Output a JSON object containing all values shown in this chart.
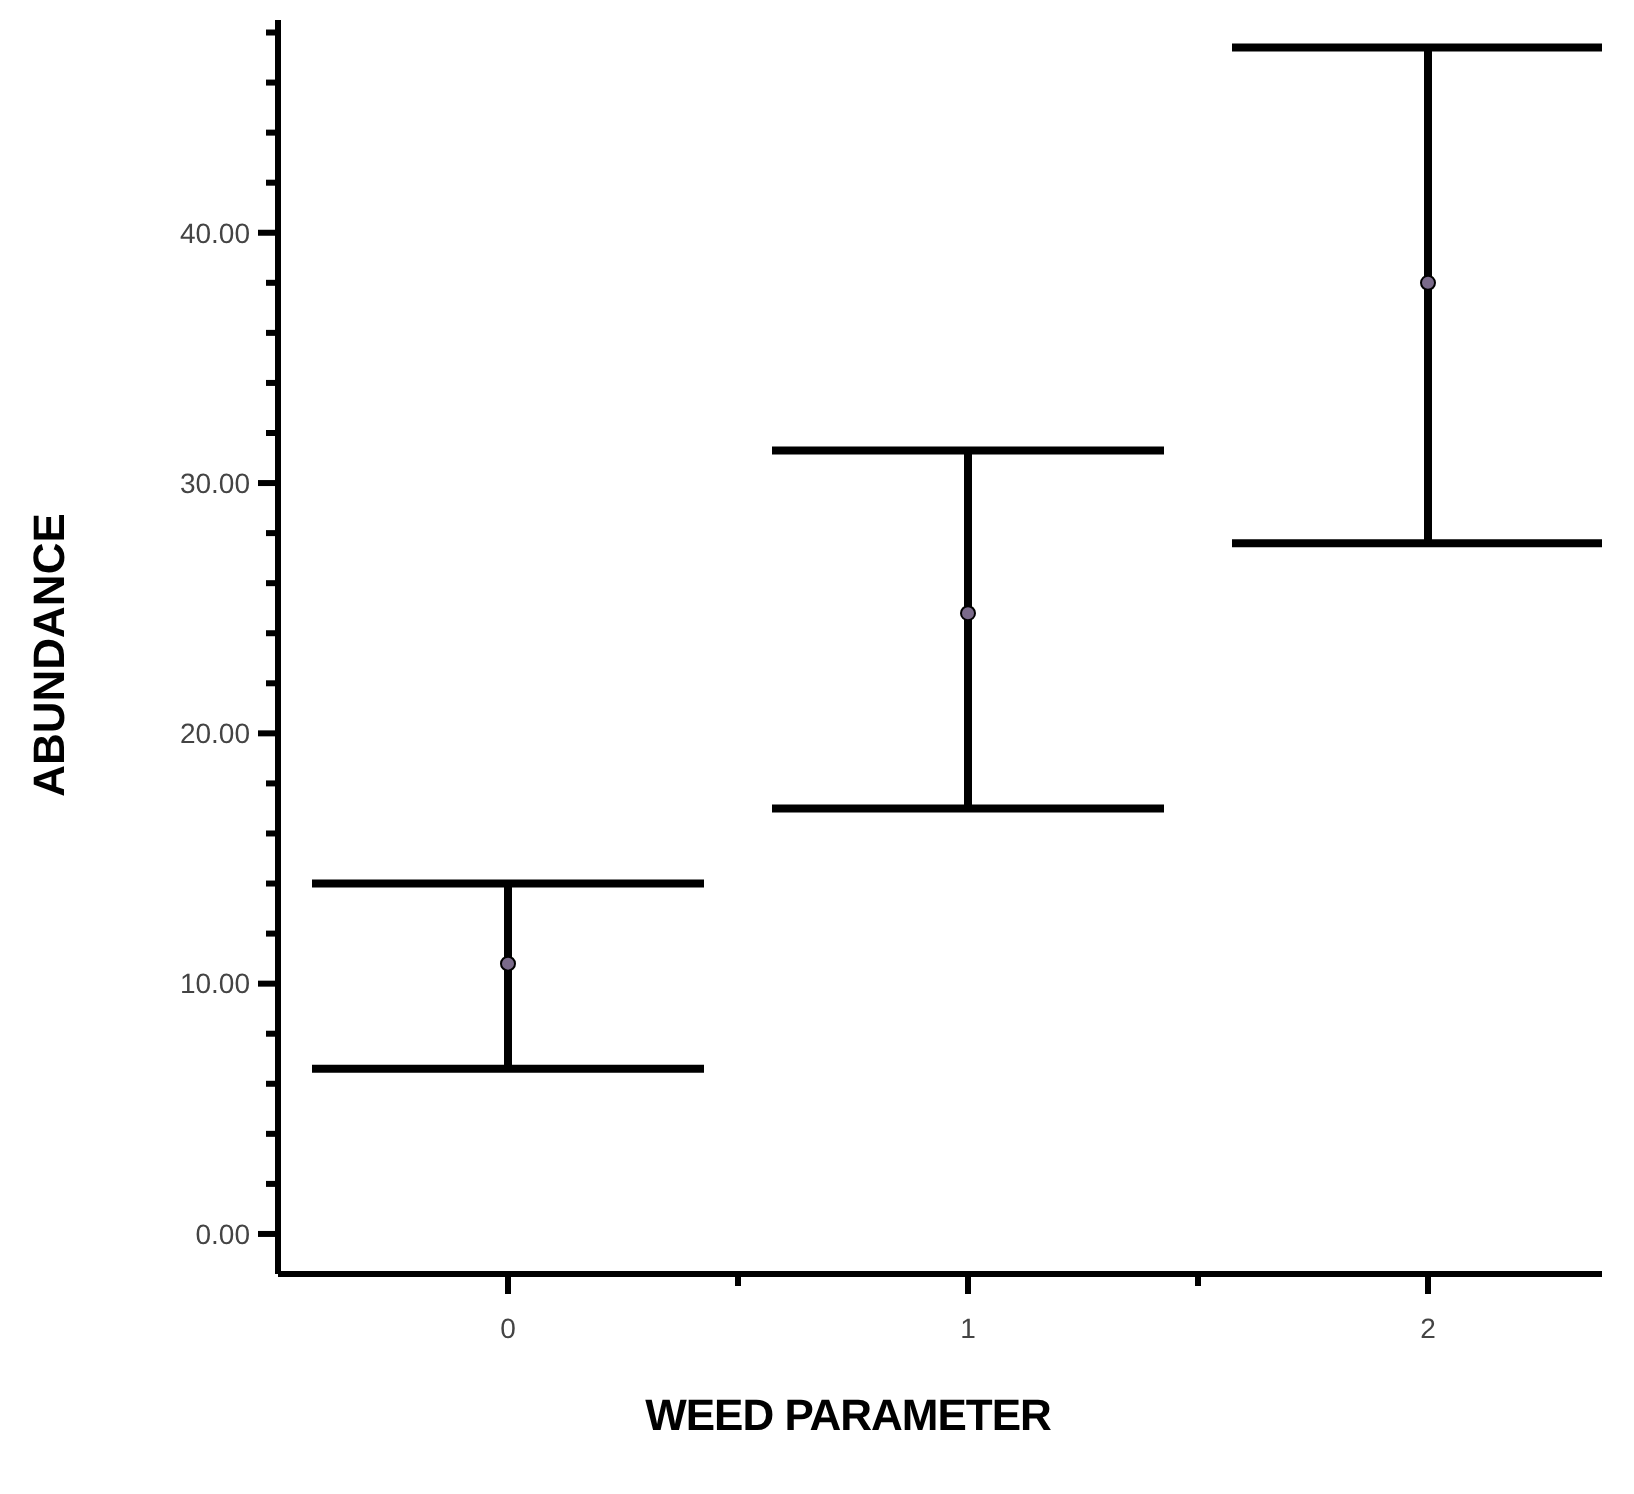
{
  "chart_data": {
    "type": "scatter",
    "xlabel": "WEED PARAMETER",
    "ylabel": "ABUNDANCE",
    "categories": [
      "0",
      "1",
      "2"
    ],
    "values": [
      10.8,
      24.8,
      38.0
    ],
    "errors": [
      [
        6.6,
        14.0
      ],
      [
        17.0,
        31.3
      ],
      [
        27.6,
        47.4
      ]
    ],
    "color": "#000000",
    "marker": "circle",
    "grid": false,
    "ylim": [
      -1.6,
      48.5
    ],
    "yticks": [
      {
        "value": 0,
        "label": "0.00"
      },
      {
        "value": 2,
        "label": null
      },
      {
        "value": 4,
        "label": null
      },
      {
        "value": 6,
        "label": null
      },
      {
        "value": 8,
        "label": null
      },
      {
        "value": 10,
        "label": "10.00"
      },
      {
        "value": 12,
        "label": null
      },
      {
        "value": 14,
        "label": null
      },
      {
        "value": 16,
        "label": null
      },
      {
        "value": 18,
        "label": null
      },
      {
        "value": 20,
        "label": "20.00"
      },
      {
        "value": 22,
        "label": null
      },
      {
        "value": 24,
        "label": null
      },
      {
        "value": 26,
        "label": null
      },
      {
        "value": 28,
        "label": null
      },
      {
        "value": 30,
        "label": "30.00"
      },
      {
        "value": 32,
        "label": null
      },
      {
        "value": 34,
        "label": null
      },
      {
        "value": 36,
        "label": null
      },
      {
        "value": 38,
        "label": null
      },
      {
        "value": 40,
        "label": "40.00"
      },
      {
        "value": 42,
        "label": null
      },
      {
        "value": 44,
        "label": null
      },
      {
        "value": 46,
        "label": null
      },
      {
        "value": 48,
        "label": null
      }
    ]
  }
}
